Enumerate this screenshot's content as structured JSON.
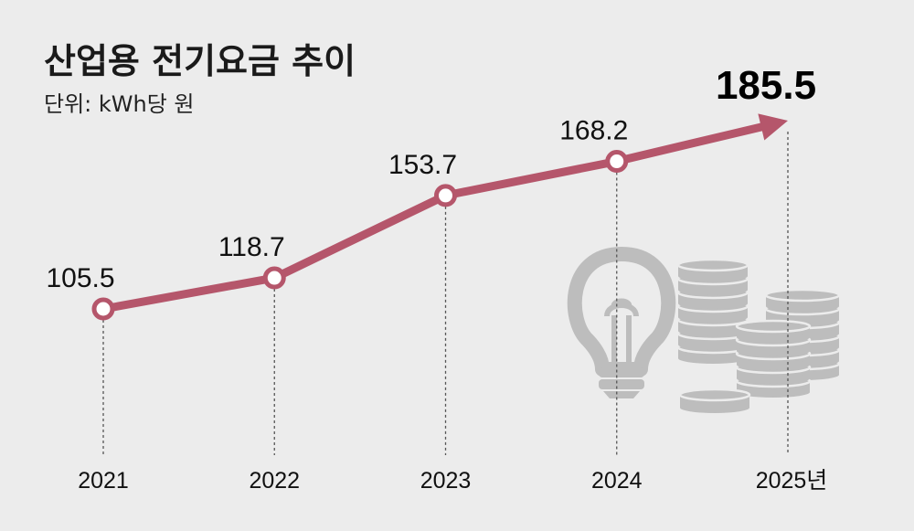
{
  "header": {
    "title": "산업용 전기요금 추이",
    "unit": "단위: kWh당 원"
  },
  "chart_data": {
    "type": "line",
    "title": "산업용 전기요금 추이",
    "ylabel": "단위: kWh당 원",
    "xlabel": "",
    "categories": [
      "2021",
      "2022",
      "2023",
      "2024",
      "2025년"
    ],
    "series": [
      {
        "values": [
          105.5,
          118.7,
          153.7,
          168.2,
          185.5
        ]
      }
    ],
    "value_labels": [
      "105.5",
      "118.7",
      "153.7",
      "168.2",
      "185.5"
    ],
    "last_point_marker": "arrow",
    "grid": false,
    "colors": {
      "line": "#b5566b",
      "background": "#ececec",
      "icons": "#bdbdbd"
    }
  },
  "decorations": {
    "icons": [
      "light-bulb-icon",
      "coin-stack-icon"
    ]
  }
}
